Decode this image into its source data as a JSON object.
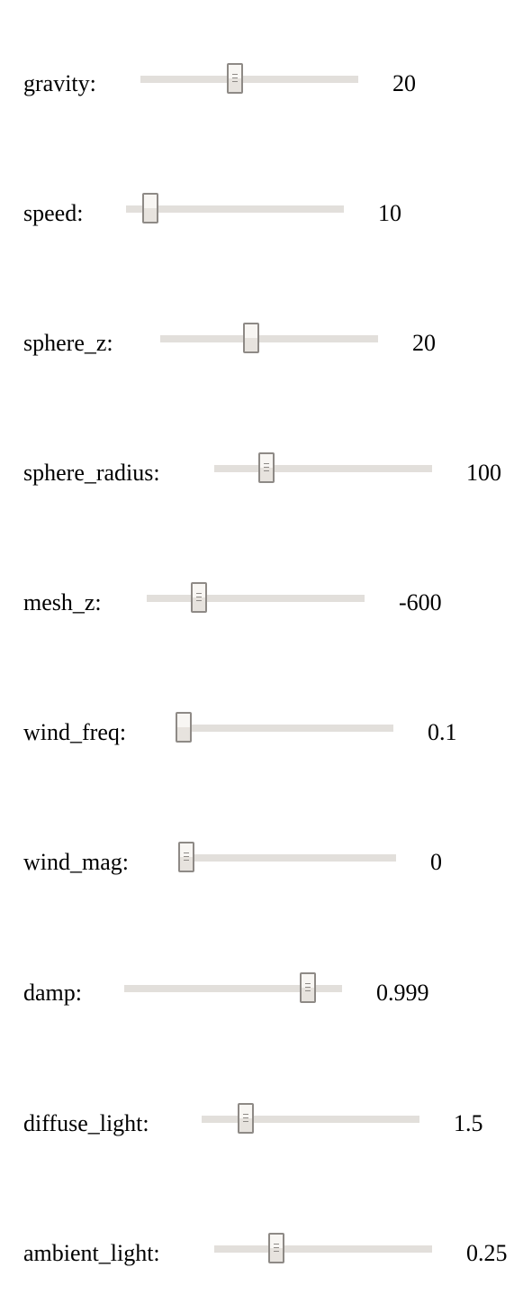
{
  "controls": [
    {
      "id": "gravity",
      "label": "gravity:",
      "value": "20",
      "level": 0.43,
      "grip": true
    },
    {
      "id": "speed",
      "label": "speed:",
      "value": "10",
      "level": 0.08,
      "grip": false
    },
    {
      "id": "sphere-z",
      "label": "sphere_z:",
      "value": "20",
      "level": 0.41,
      "grip": false
    },
    {
      "id": "sphere-radius",
      "label": "sphere_radius:",
      "value": "100",
      "level": 0.22,
      "grip": true
    },
    {
      "id": "mesh-z",
      "label": "mesh_z:",
      "value": "-600",
      "level": 0.22,
      "grip": true
    },
    {
      "id": "wind-freq",
      "label": "wind_freq:",
      "value": "0.1",
      "level": 0.0,
      "grip": false
    },
    {
      "id": "wind-mag",
      "label": "wind_mag:",
      "value": "0",
      "level": 0.0,
      "grip": true
    },
    {
      "id": "damp",
      "label": "damp:",
      "value": "0.999",
      "level": 0.87,
      "grip": true
    },
    {
      "id": "diffuse-light",
      "label": "diffuse_light:",
      "value": "1.5",
      "level": 0.18,
      "grip": true
    },
    {
      "id": "ambient-light",
      "label": "ambient_light:",
      "value": "0.25",
      "level": 0.27,
      "grip": true
    }
  ],
  "colors": {
    "track": "#e2dfdb",
    "thumb_border": "#8e8a86",
    "thumb_fill_top": "#f8f6f3",
    "thumb_fill_bottom": "#e7e3de"
  }
}
